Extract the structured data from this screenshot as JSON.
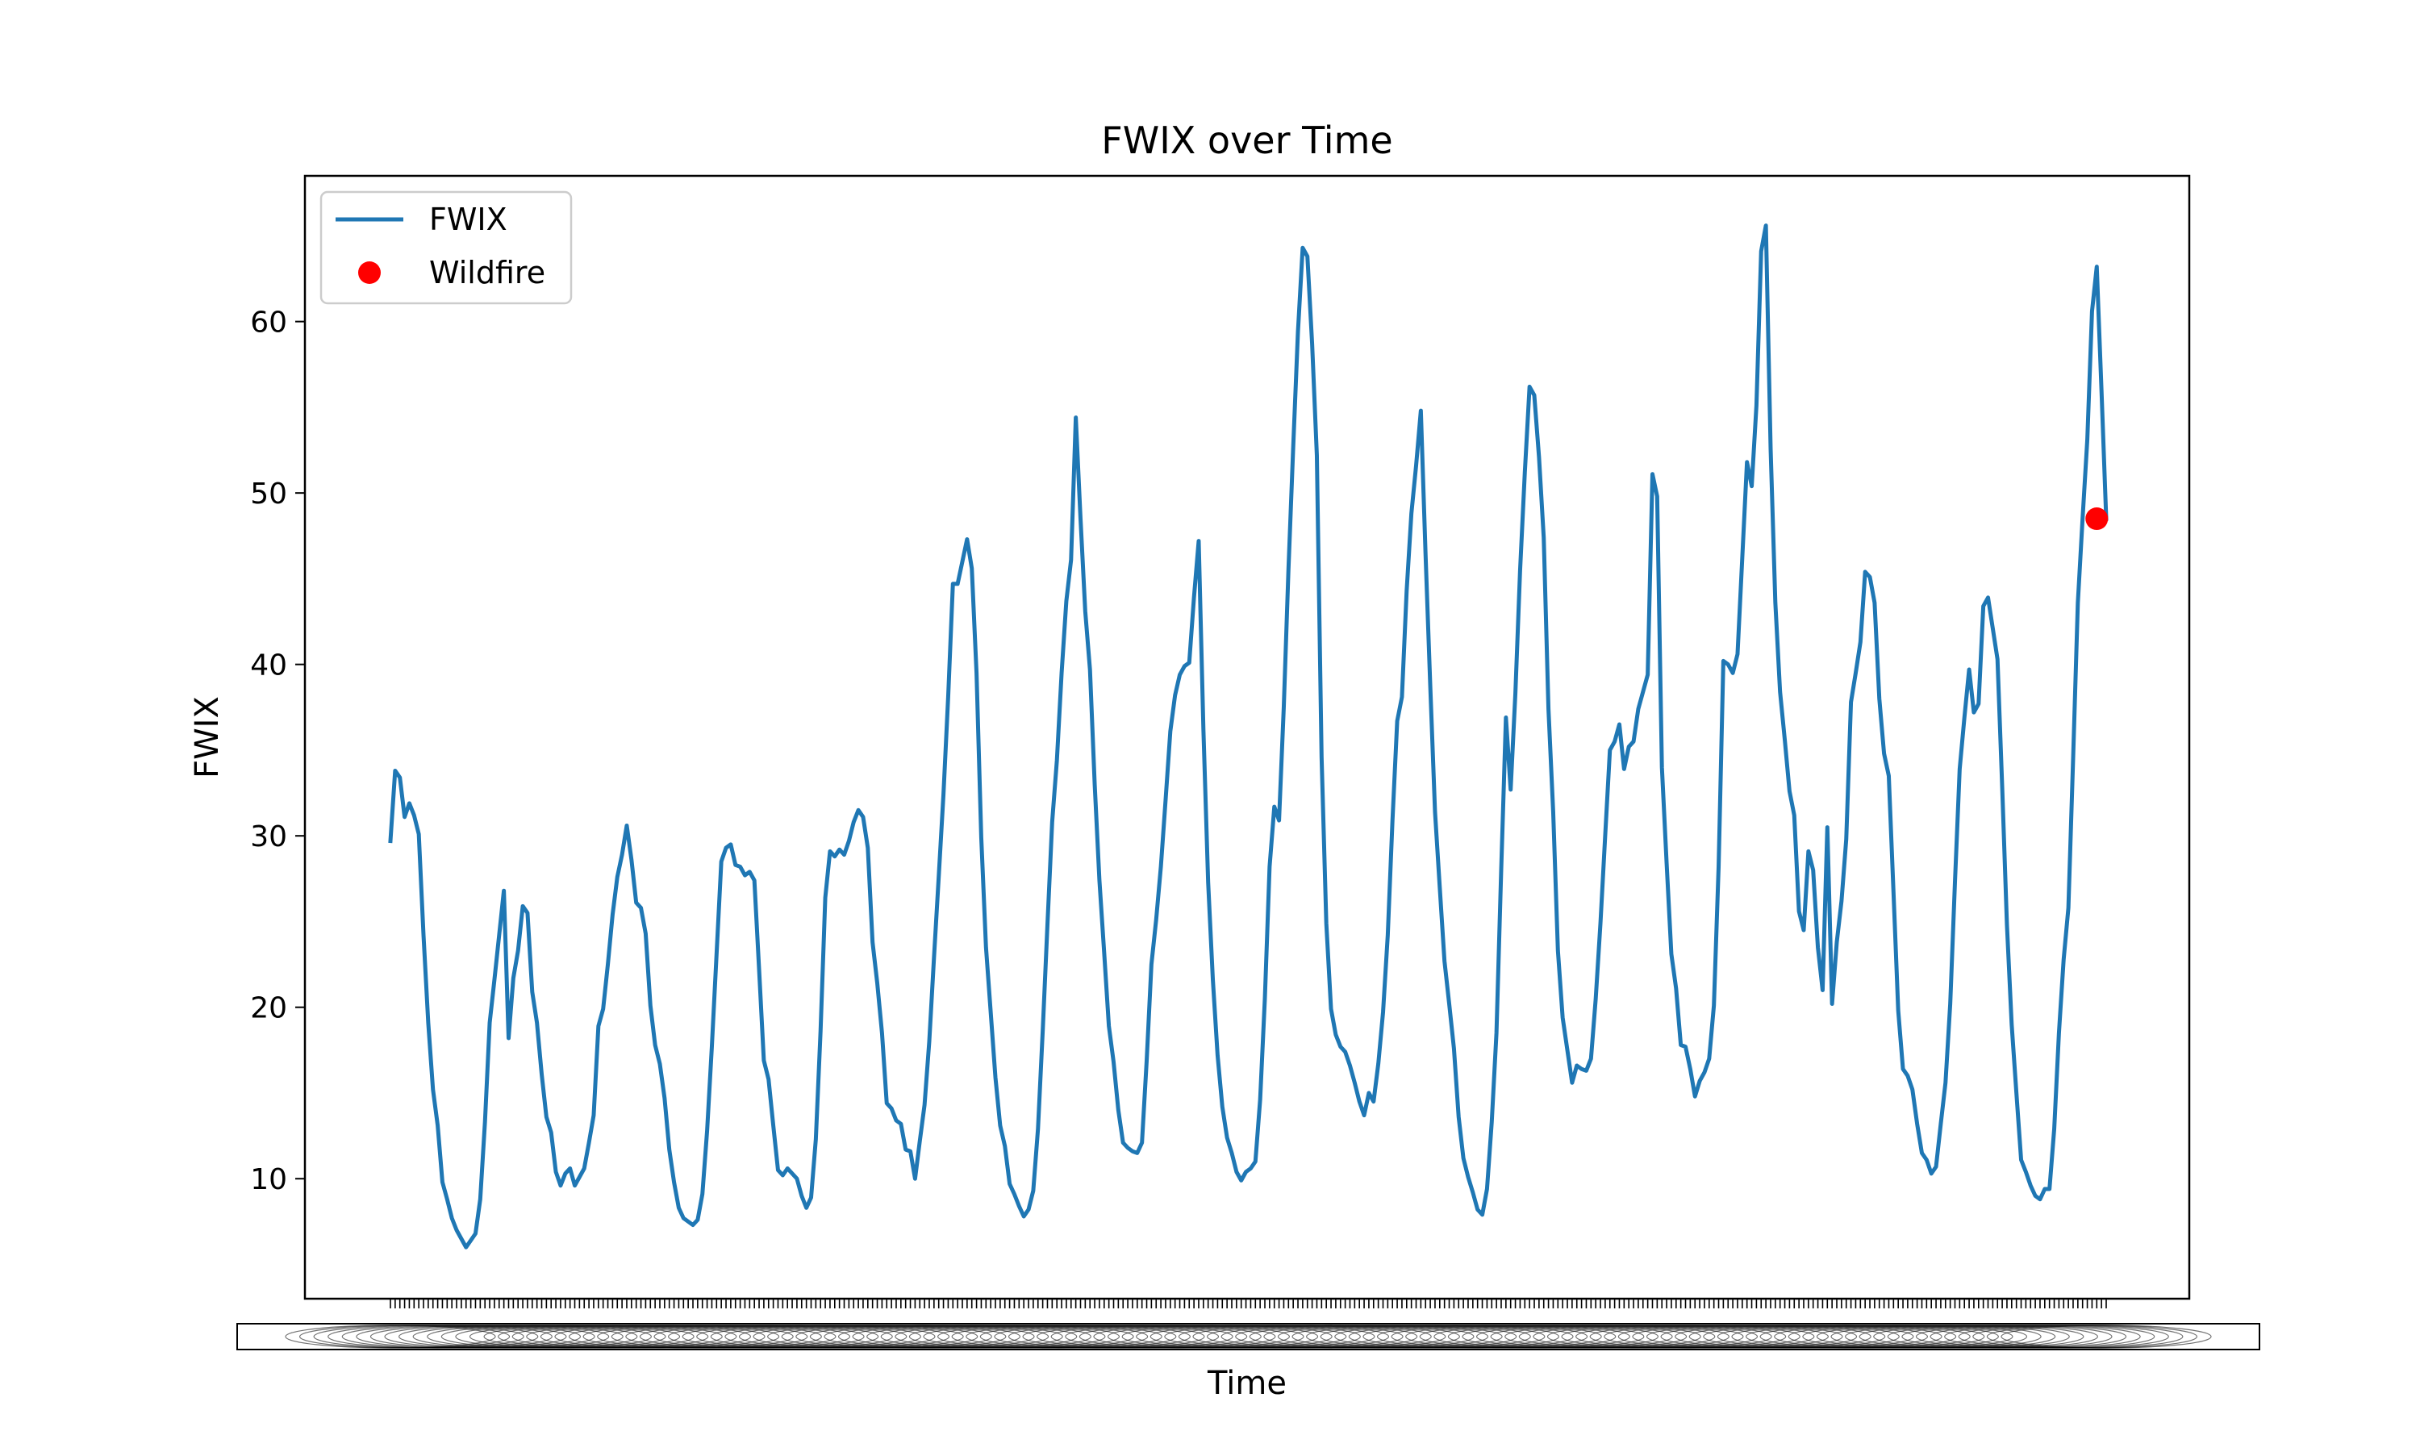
{
  "chart_data": {
    "type": "line",
    "title": "FWIX over Time",
    "xlabel": "Time",
    "ylabel": "FWIX",
    "ylim": [
      3.0,
      68.5
    ],
    "yticks": [
      10,
      20,
      30,
      40,
      50,
      60
    ],
    "x_ticks_overlapping": true,
    "grid": false,
    "legend": {
      "position": "upper-left",
      "entries": [
        "FWIX",
        "Wildfire"
      ]
    },
    "colors": {
      "line": "#1f77b4",
      "marker": "#ff0000",
      "axes": "#000000"
    },
    "series": [
      {
        "name": "FWIX",
        "values": [
          29.7,
          33.8,
          33.4,
          31.1,
          31.9,
          31.2,
          30.1,
          24.2,
          19.1,
          15.2,
          13.1,
          9.8,
          8.8,
          7.7,
          7.0,
          6.5,
          6.0,
          6.4,
          6.8,
          8.8,
          13.3,
          19.1,
          21.6,
          24.2,
          26.8,
          18.2,
          21.7,
          23.3,
          25.9,
          25.5,
          20.9,
          19.1,
          16.1,
          13.6,
          12.7,
          10.4,
          9.6,
          10.3,
          10.6,
          9.6,
          10.1,
          10.6,
          12.1,
          13.7,
          18.9,
          19.9,
          22.5,
          25.4,
          27.6,
          28.9,
          30.6,
          28.6,
          26.1,
          25.8,
          24.3,
          20.1,
          17.8,
          16.7,
          14.7,
          11.7,
          9.8,
          8.3,
          7.7,
          7.5,
          7.3,
          7.6,
          9.1,
          12.8,
          17.7,
          23.1,
          28.5,
          29.3,
          29.5,
          28.3,
          28.2,
          27.7,
          27.9,
          27.4,
          22.2,
          16.9,
          15.8,
          13.1,
          10.5,
          10.2,
          10.6,
          10.3,
          10.0,
          9.0,
          8.3,
          8.9,
          12.3,
          18.6,
          26.4,
          29.1,
          28.8,
          29.2,
          28.9,
          29.7,
          30.8,
          31.5,
          31.1,
          29.3,
          23.8,
          21.4,
          18.5,
          14.4,
          14.1,
          13.4,
          13.2,
          11.7,
          11.6,
          10.0,
          12.2,
          14.3,
          18.0,
          22.9,
          27.6,
          32.4,
          38.1,
          44.7,
          44.7,
          46.0,
          47.3,
          45.6,
          39.5,
          29.9,
          23.5,
          19.7,
          15.9,
          13.1,
          11.9,
          9.7,
          9.1,
          8.4,
          7.8,
          8.2,
          9.3,
          12.9,
          18.6,
          24.8,
          30.8,
          34.4,
          39.5,
          43.7,
          46.1,
          54.4,
          48.5,
          43.1,
          39.7,
          33.0,
          27.4,
          23.2,
          18.9,
          16.8,
          14.0,
          12.1,
          11.8,
          11.6,
          11.5,
          12.1,
          16.9,
          22.5,
          25.1,
          28.2,
          32.1,
          36.1,
          38.2,
          39.4,
          39.9,
          40.1,
          43.9,
          47.2,
          36.2,
          27.3,
          21.6,
          17.2,
          14.2,
          12.4,
          11.5,
          10.4,
          9.9,
          10.4,
          10.6,
          11.0,
          14.6,
          20.5,
          28.2,
          31.7,
          30.9,
          37.5,
          45.6,
          52.7,
          59.4,
          64.3,
          63.8,
          58.7,
          52.2,
          34.6,
          24.9,
          19.9,
          18.4,
          17.7,
          17.4,
          16.6,
          15.6,
          14.5,
          13.7,
          15.0,
          14.5,
          16.7,
          19.7,
          24.2,
          30.9,
          36.7,
          38.1,
          44.3,
          48.8,
          51.6,
          54.8,
          46.4,
          38.7,
          31.4,
          27.0,
          22.7,
          20.2,
          17.6,
          13.6,
          11.2,
          10.1,
          9.2,
          8.2,
          7.9,
          9.4,
          13.3,
          18.5,
          28.0,
          36.9,
          32.7,
          38.3,
          45.5,
          51.2,
          56.2,
          55.7,
          52.1,
          47.4,
          37.4,
          31.4,
          23.3,
          19.4,
          17.5,
          15.6,
          16.6,
          16.4,
          16.3,
          17.0,
          20.5,
          24.9,
          30.0,
          35.0,
          35.5,
          36.5,
          33.9,
          35.2,
          35.5,
          37.4,
          38.4,
          39.4,
          51.1,
          49.8,
          34.0,
          28.4,
          23.1,
          21.1,
          17.8,
          17.7,
          16.4,
          14.8,
          15.7,
          16.2,
          17.0,
          20.1,
          28.2,
          40.2,
          40.0,
          39.5,
          40.6,
          46.2,
          51.8,
          50.4,
          55.1,
          64.1,
          65.6,
          52.6,
          43.6,
          38.4,
          35.6,
          32.6,
          31.2,
          25.6,
          24.5,
          29.1,
          28.0,
          23.5,
          21.0,
          30.5,
          20.2,
          23.8,
          26.2,
          29.8,
          37.8,
          39.5,
          41.3,
          45.4,
          45.1,
          43.6,
          38.0,
          34.8,
          33.5,
          26.7,
          19.8,
          16.4,
          16.0,
          15.2,
          13.2,
          11.5,
          11.1,
          10.3,
          10.7,
          13.2,
          15.6,
          20.2,
          27.3,
          33.9,
          36.9,
          39.7,
          37.2,
          37.7,
          43.4,
          43.9,
          42.1,
          40.3,
          32.8,
          24.8,
          19.0,
          15.0,
          11.1,
          10.4,
          9.6,
          9.0,
          8.8,
          9.4,
          9.4,
          12.9,
          18.5,
          22.8,
          25.8,
          34.5,
          43.6,
          48.5,
          53.1,
          60.6,
          63.2,
          56.0,
          48.5
        ]
      },
      {
        "name": "Wildfire",
        "type": "scatter",
        "index": [
          361
        ],
        "values": [
          48.5
        ]
      }
    ]
  }
}
